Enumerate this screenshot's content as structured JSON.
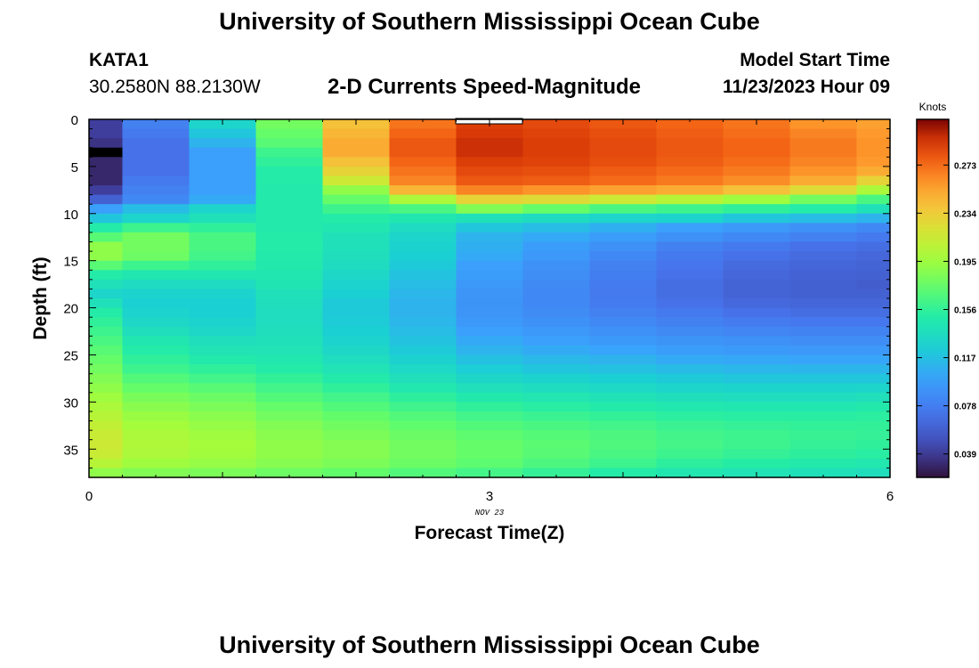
{
  "header": {
    "title": "University of Southern Mississippi Ocean Cube",
    "station_id": "KATA1",
    "station_coords": "30.2580N  88.2130W",
    "subtitle": "2-D Currents Speed-Magnitude",
    "model_start_label": "Model Start Time",
    "model_start_value": "11/23/2023 Hour 09"
  },
  "footer": {
    "title": "University of Southern Mississippi Ocean Cube"
  },
  "chart_data": {
    "type": "heatmap",
    "xlabel": "Forecast Time(Z)",
    "ylabel": "Depth (ft)",
    "x_date_label": "NOV 23",
    "xlim": [
      0,
      6
    ],
    "ylim": [
      38,
      0
    ],
    "x_ticks": [
      0,
      3,
      6
    ],
    "y_ticks": [
      0,
      5,
      10,
      15,
      20,
      25,
      30,
      35
    ],
    "x_edges": [
      0,
      0.25,
      0.75,
      1.25,
      1.75,
      2.25,
      2.75,
      3.25,
      3.75,
      4.25,
      4.75,
      5.25,
      5.75,
      6
    ],
    "y_edges": [
      0,
      1,
      2,
      3,
      4,
      5,
      6,
      7,
      8,
      9,
      10,
      11,
      12,
      13,
      14,
      15,
      16,
      17,
      18,
      19,
      20,
      21,
      22,
      23,
      24,
      25,
      26,
      27,
      28,
      29,
      30,
      31,
      32,
      33,
      34,
      35,
      36,
      37,
      38
    ],
    "z_units": "Knots",
    "zlim": [
      0.02,
      0.31
    ],
    "colorbar_ticks": [
      0.039,
      0.078,
      0.117,
      0.156,
      0.195,
      0.234,
      0.273
    ],
    "colorbar_label": "Knots",
    "values": [
      [
        0.04,
        0.08,
        0.13,
        0.18,
        0.24,
        0.27,
        0.29,
        0.285,
        0.28,
        0.275,
        0.27,
        0.26,
        0.255
      ],
      [
        0.04,
        0.075,
        0.12,
        0.175,
        0.245,
        0.275,
        0.292,
        0.288,
        0.283,
        0.278,
        0.272,
        0.265,
        0.258
      ],
      [
        0.035,
        0.07,
        0.11,
        0.17,
        0.25,
        0.28,
        0.295,
        0.29,
        0.285,
        0.28,
        0.275,
        0.268,
        0.26
      ],
      [
        0.03,
        0.07,
        0.1,
        0.16,
        0.25,
        0.28,
        0.295,
        0.29,
        0.285,
        0.28,
        0.275,
        0.268,
        0.26
      ],
      [
        0.03,
        0.07,
        0.1,
        0.155,
        0.24,
        0.275,
        0.29,
        0.288,
        0.283,
        0.278,
        0.272,
        0.265,
        0.258
      ],
      [
        0.03,
        0.07,
        0.1,
        0.15,
        0.23,
        0.27,
        0.285,
        0.283,
        0.278,
        0.273,
        0.268,
        0.26,
        0.25
      ],
      [
        0.03,
        0.075,
        0.1,
        0.15,
        0.215,
        0.265,
        0.28,
        0.278,
        0.273,
        0.268,
        0.262,
        0.25,
        0.23
      ],
      [
        0.04,
        0.08,
        0.1,
        0.148,
        0.19,
        0.245,
        0.265,
        0.26,
        0.255,
        0.25,
        0.24,
        0.225,
        0.2
      ],
      [
        0.06,
        0.085,
        0.105,
        0.148,
        0.175,
        0.2,
        0.23,
        0.225,
        0.215,
        0.205,
        0.195,
        0.18,
        0.165
      ],
      [
        0.1,
        0.115,
        0.13,
        0.148,
        0.16,
        0.165,
        0.185,
        0.175,
        0.165,
        0.16,
        0.155,
        0.15,
        0.14
      ],
      [
        0.12,
        0.13,
        0.14,
        0.148,
        0.15,
        0.145,
        0.14,
        0.135,
        0.13,
        0.128,
        0.12,
        0.115,
        0.11
      ],
      [
        0.15,
        0.16,
        0.155,
        0.148,
        0.145,
        0.135,
        0.12,
        0.115,
        0.108,
        0.1,
        0.095,
        0.09,
        0.085
      ],
      [
        0.17,
        0.18,
        0.165,
        0.15,
        0.14,
        0.13,
        0.11,
        0.105,
        0.098,
        0.09,
        0.085,
        0.08,
        0.075
      ],
      [
        0.19,
        0.18,
        0.165,
        0.15,
        0.14,
        0.127,
        0.108,
        0.098,
        0.09,
        0.08,
        0.075,
        0.07,
        0.068
      ],
      [
        0.19,
        0.178,
        0.162,
        0.148,
        0.138,
        0.125,
        0.105,
        0.095,
        0.085,
        0.075,
        0.07,
        0.066,
        0.064
      ],
      [
        0.17,
        0.16,
        0.155,
        0.147,
        0.136,
        0.122,
        0.1,
        0.09,
        0.08,
        0.072,
        0.066,
        0.063,
        0.062
      ],
      [
        0.15,
        0.145,
        0.145,
        0.145,
        0.132,
        0.118,
        0.098,
        0.088,
        0.078,
        0.07,
        0.064,
        0.061,
        0.06
      ],
      [
        0.14,
        0.135,
        0.135,
        0.143,
        0.128,
        0.115,
        0.095,
        0.086,
        0.076,
        0.068,
        0.062,
        0.06,
        0.058
      ],
      [
        0.13,
        0.128,
        0.128,
        0.14,
        0.125,
        0.112,
        0.093,
        0.085,
        0.075,
        0.068,
        0.062,
        0.06,
        0.06
      ],
      [
        0.14,
        0.125,
        0.125,
        0.138,
        0.122,
        0.11,
        0.092,
        0.085,
        0.076,
        0.07,
        0.065,
        0.063,
        0.063
      ],
      [
        0.15,
        0.128,
        0.125,
        0.137,
        0.122,
        0.11,
        0.093,
        0.087,
        0.08,
        0.075,
        0.07,
        0.068,
        0.068
      ],
      [
        0.155,
        0.132,
        0.128,
        0.137,
        0.123,
        0.112,
        0.095,
        0.09,
        0.085,
        0.08,
        0.076,
        0.074,
        0.074
      ],
      [
        0.16,
        0.138,
        0.132,
        0.138,
        0.125,
        0.115,
        0.1,
        0.095,
        0.09,
        0.086,
        0.083,
        0.081,
        0.081
      ],
      [
        0.165,
        0.145,
        0.138,
        0.14,
        0.128,
        0.118,
        0.105,
        0.1,
        0.096,
        0.092,
        0.09,
        0.088,
        0.088
      ],
      [
        0.17,
        0.15,
        0.142,
        0.142,
        0.132,
        0.122,
        0.11,
        0.106,
        0.102,
        0.098,
        0.096,
        0.095,
        0.095
      ],
      [
        0.175,
        0.155,
        0.148,
        0.146,
        0.137,
        0.127,
        0.117,
        0.113,
        0.11,
        0.106,
        0.104,
        0.103,
        0.103
      ],
      [
        0.18,
        0.16,
        0.155,
        0.15,
        0.142,
        0.133,
        0.124,
        0.12,
        0.117,
        0.114,
        0.112,
        0.111,
        0.111
      ],
      [
        0.185,
        0.168,
        0.162,
        0.156,
        0.148,
        0.139,
        0.131,
        0.128,
        0.125,
        0.122,
        0.12,
        0.12,
        0.12
      ],
      [
        0.19,
        0.175,
        0.17,
        0.162,
        0.155,
        0.146,
        0.139,
        0.136,
        0.133,
        0.13,
        0.129,
        0.129,
        0.13
      ],
      [
        0.195,
        0.182,
        0.177,
        0.168,
        0.162,
        0.154,
        0.147,
        0.144,
        0.141,
        0.138,
        0.137,
        0.137,
        0.139
      ],
      [
        0.2,
        0.188,
        0.183,
        0.175,
        0.168,
        0.161,
        0.155,
        0.152,
        0.149,
        0.146,
        0.145,
        0.145,
        0.147
      ],
      [
        0.205,
        0.193,
        0.188,
        0.18,
        0.174,
        0.168,
        0.162,
        0.159,
        0.156,
        0.153,
        0.152,
        0.152,
        0.153
      ],
      [
        0.21,
        0.197,
        0.192,
        0.185,
        0.179,
        0.173,
        0.168,
        0.165,
        0.162,
        0.159,
        0.157,
        0.156,
        0.156
      ],
      [
        0.213,
        0.2,
        0.195,
        0.188,
        0.183,
        0.177,
        0.172,
        0.169,
        0.166,
        0.162,
        0.16,
        0.158,
        0.157
      ],
      [
        0.215,
        0.202,
        0.197,
        0.19,
        0.186,
        0.18,
        0.175,
        0.171,
        0.167,
        0.163,
        0.16,
        0.157,
        0.155
      ],
      [
        0.213,
        0.2,
        0.196,
        0.19,
        0.186,
        0.18,
        0.175,
        0.17,
        0.165,
        0.16,
        0.157,
        0.154,
        0.152
      ],
      [
        0.205,
        0.195,
        0.192,
        0.187,
        0.183,
        0.177,
        0.172,
        0.166,
        0.16,
        0.154,
        0.151,
        0.148,
        0.146
      ],
      [
        0.19,
        0.185,
        0.183,
        0.178,
        0.174,
        0.168,
        0.163,
        0.157,
        0.15,
        0.145,
        0.142,
        0.14,
        0.138
      ]
    ],
    "masked_cells": [
      [
        3,
        0
      ]
    ],
    "masked_color": "#000000"
  }
}
